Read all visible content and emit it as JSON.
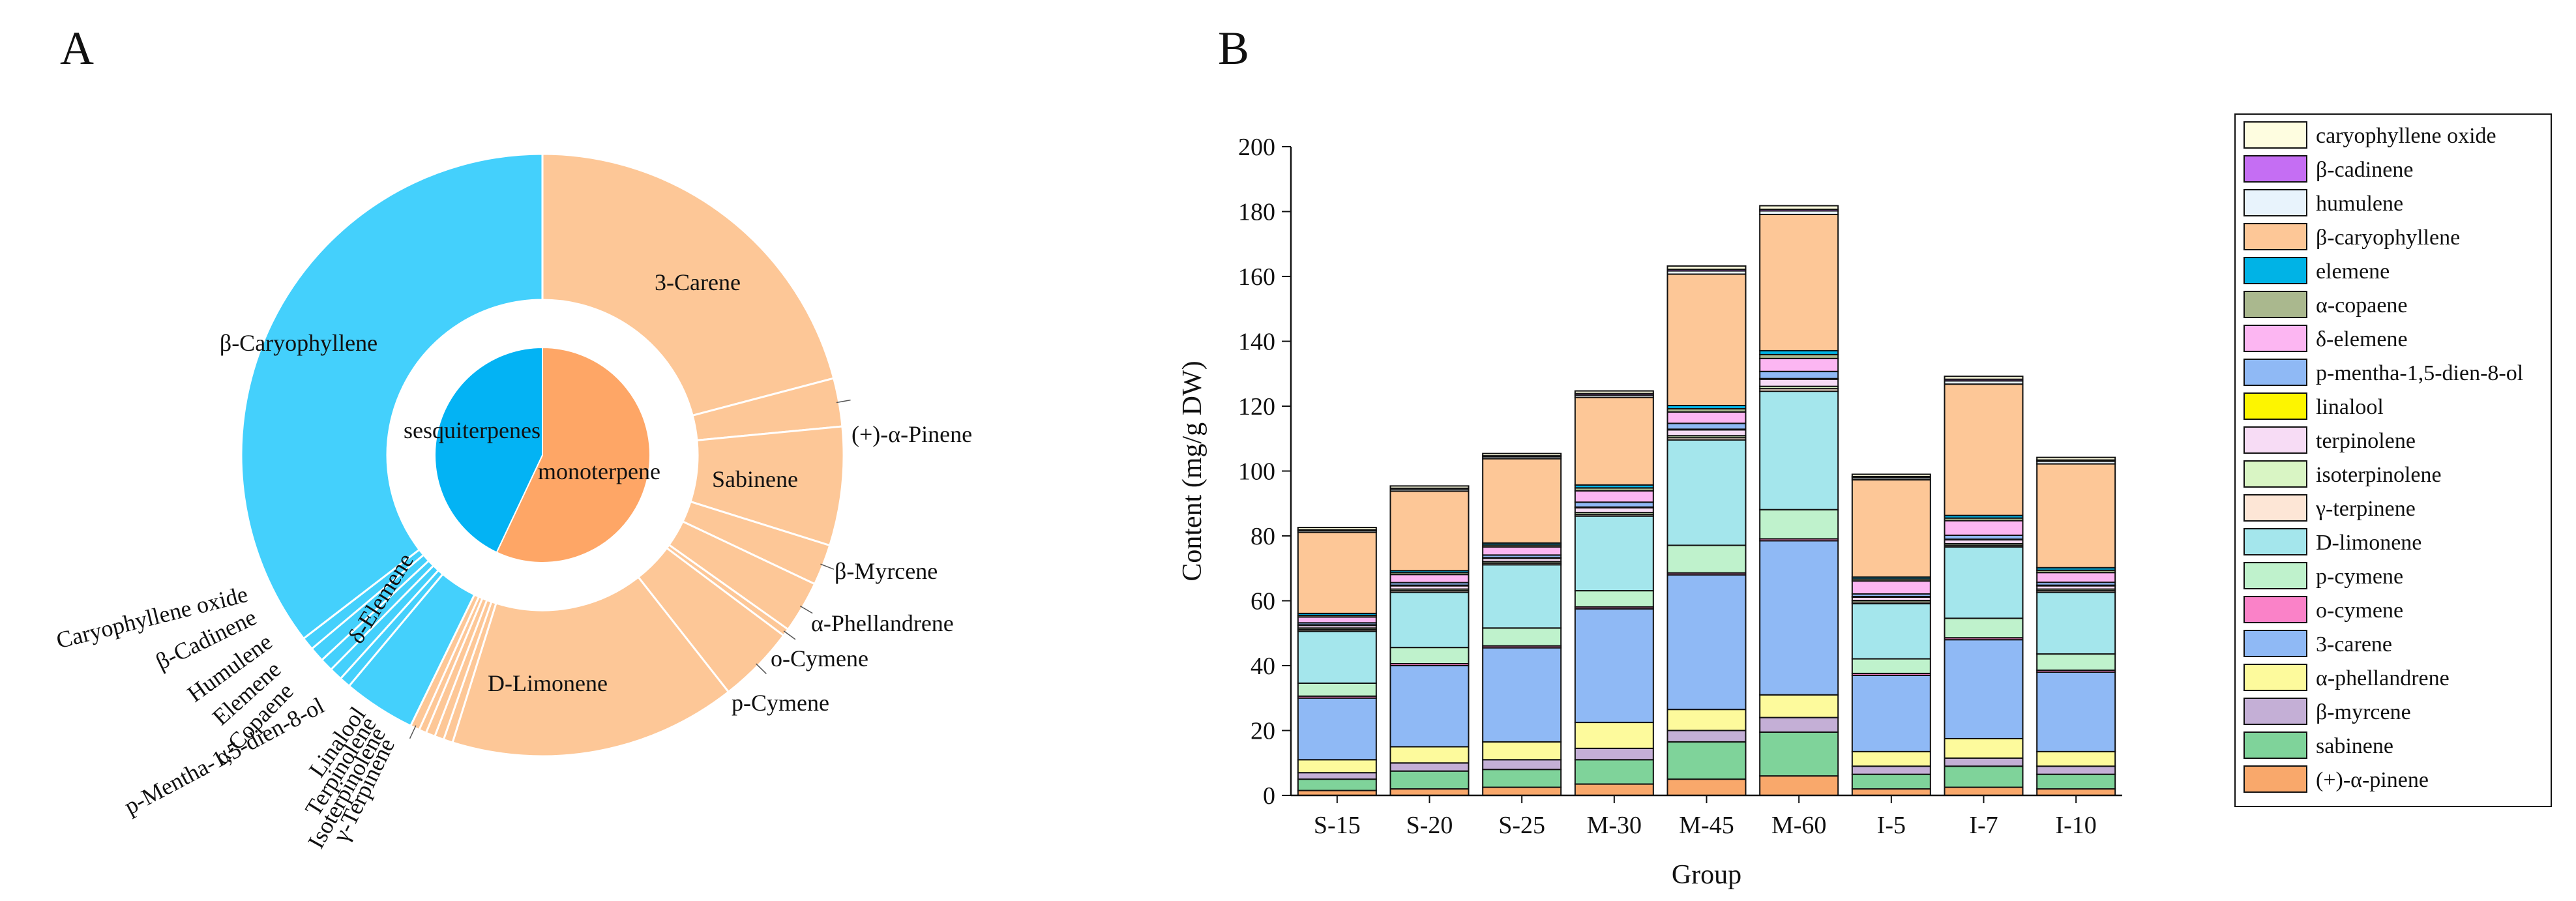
{
  "panels": {
    "a": "A",
    "b": "B"
  },
  "colors": {
    "mono_outer": "#fdc797",
    "mono_inner": "#fea666",
    "sesq_outer": "#44d0fc",
    "sesq_inner": "#03b3f4"
  },
  "chart_data": [
    {
      "type": "pie",
      "subtype": "sunburst",
      "inner": [
        {
          "name": "monoterpene",
          "value": 57.0
        },
        {
          "name": "sesquiterpenes",
          "value": 43.0
        }
      ],
      "outer": [
        {
          "name": "3-Carene",
          "value": 21.0,
          "group": "monoterpene"
        },
        {
          "name": "(+)-α-Pinene",
          "value": 2.6,
          "group": "monoterpene"
        },
        {
          "name": "Sabinene",
          "value": 6.4,
          "group": "monoterpene"
        },
        {
          "name": "β-Myrcene",
          "value": 2.2,
          "group": "monoterpene"
        },
        {
          "name": "α-Phellandrene",
          "value": 2.8,
          "group": "monoterpene"
        },
        {
          "name": "o-Cymene",
          "value": 0.4,
          "group": "monoterpene"
        },
        {
          "name": "p-Cymene",
          "value": 4.2,
          "group": "monoterpene"
        },
        {
          "name": "D-Limonene",
          "value": 15.5,
          "group": "monoterpene"
        },
        {
          "name": "γ-Terpinene",
          "value": 0.5,
          "group": "monoterpene"
        },
        {
          "name": "Isoterpinolene",
          "value": 0.5,
          "group": "monoterpene"
        },
        {
          "name": "Terpinolene",
          "value": 0.5,
          "group": "monoterpene"
        },
        {
          "name": "Linalool",
          "value": 0.4,
          "group": "monoterpene"
        },
        {
          "name": "p-Mentha-1,5-dien-8-ol",
          "value": 0.5,
          "group": "monoterpene"
        },
        {
          "name": "δ-Elemene",
          "value": 3.9,
          "group": "sesquiterpenes"
        },
        {
          "name": "α-Copaene",
          "value": 0.6,
          "group": "sesquiterpenes"
        },
        {
          "name": "Elemene",
          "value": 0.7,
          "group": "sesquiterpenes"
        },
        {
          "name": "Humulene",
          "value": 0.7,
          "group": "sesquiterpenes"
        },
        {
          "name": "β-Cadinene",
          "value": 0.8,
          "group": "sesquiterpenes"
        },
        {
          "name": "Caryophyllene oxide",
          "value": 0.7,
          "group": "sesquiterpenes"
        },
        {
          "name": "β-Caryophyllene",
          "value": 35.6,
          "group": "sesquiterpenes"
        }
      ]
    },
    {
      "type": "bar",
      "subtype": "stacked",
      "xlabel": "Group",
      "ylabel": "Content (mg/g DW)",
      "ylim": [
        0,
        200
      ],
      "yticks": [
        0,
        20,
        40,
        60,
        80,
        100,
        120,
        140,
        160,
        180,
        200
      ],
      "categories": [
        "S-15",
        "S-20",
        "S-25",
        "M-30",
        "M-45",
        "M-60",
        "I-5",
        "I-7",
        "I-10"
      ],
      "legend_position": "right",
      "series": [
        {
          "name": "(+)-α-pinene",
          "color": "#f9a86b",
          "values": [
            1.5,
            2.0,
            2.5,
            3.5,
            5.0,
            6.0,
            2.0,
            2.5,
            2.0
          ]
        },
        {
          "name": "sabinene",
          "color": "#7fd39a",
          "values": [
            3.5,
            5.5,
            5.5,
            7.5,
            11.5,
            13.5,
            4.5,
            6.5,
            4.5
          ]
        },
        {
          "name": "β-myrcene",
          "color": "#c4afd6",
          "values": [
            2.0,
            2.5,
            3.0,
            3.5,
            3.5,
            4.5,
            2.5,
            2.5,
            2.5
          ]
        },
        {
          "name": "α-phellandrene",
          "color": "#fdfa9c",
          "values": [
            4.0,
            5.0,
            5.5,
            8.0,
            6.5,
            7.0,
            4.5,
            6.0,
            4.5
          ]
        },
        {
          "name": "3-carene",
          "color": "#8fb9f5",
          "values": [
            19.0,
            25.0,
            29.0,
            35.0,
            41.5,
            47.5,
            23.5,
            30.5,
            24.5
          ]
        },
        {
          "name": "o-cymene",
          "color": "#fa82c8",
          "values": [
            0.6,
            0.6,
            0.6,
            0.6,
            0.6,
            0.6,
            0.6,
            0.6,
            0.6
          ]
        },
        {
          "name": "p-cymene",
          "color": "#bff2cc",
          "values": [
            4.0,
            5.0,
            5.5,
            5.0,
            8.5,
            9.0,
            4.5,
            6.0,
            5.0
          ]
        },
        {
          "name": "D-limonene",
          "color": "#a4e6ec",
          "values": [
            16.0,
            17.0,
            19.5,
            23.0,
            32.5,
            36.5,
            17.0,
            22.0,
            19.0
          ]
        },
        {
          "name": "γ-terpinene",
          "color": "#fde6d6",
          "values": [
            0.5,
            0.5,
            0.5,
            0.5,
            0.7,
            0.8,
            0.5,
            0.5,
            0.5
          ]
        },
        {
          "name": "isoterpinolene",
          "color": "#d9f5c4",
          "values": [
            0.5,
            0.5,
            0.5,
            0.6,
            0.6,
            0.7,
            0.5,
            0.5,
            0.5
          ]
        },
        {
          "name": "terpinolene",
          "color": "#f7dcf5",
          "values": [
            0.8,
            1.0,
            1.0,
            1.5,
            1.8,
            2.2,
            1.0,
            1.2,
            1.0
          ]
        },
        {
          "name": "linalool",
          "color": "#fdf500",
          "values": [
            0.2,
            0.2,
            0.2,
            0.2,
            0.2,
            0.2,
            0.2,
            0.2,
            0.2
          ]
        },
        {
          "name": "p-mentha-1,5-dien-8-ol",
          "color": "#8fb9f5",
          "values": [
            0.6,
            0.8,
            0.8,
            1.5,
            1.8,
            2.2,
            0.8,
            1.2,
            0.9
          ]
        },
        {
          "name": "δ-elemene",
          "color": "#fcb6f2",
          "values": [
            1.8,
            2.5,
            2.5,
            3.5,
            3.5,
            4.0,
            4.0,
            4.5,
            3.0
          ]
        },
        {
          "name": "α-copaene",
          "color": "#aab88e",
          "values": [
            0.5,
            0.6,
            0.6,
            0.9,
            1.0,
            1.2,
            0.6,
            0.8,
            0.7
          ]
        },
        {
          "name": "elemene",
          "color": "#00b3e6",
          "values": [
            0.6,
            0.6,
            0.6,
            0.9,
            1.0,
            1.2,
            0.6,
            0.8,
            0.8
          ]
        },
        {
          "name": "β-caryophyllene",
          "color": "#fdc797",
          "values": [
            25.0,
            24.5,
            26.0,
            27.0,
            40.5,
            42.0,
            30.0,
            40.5,
            32.0
          ]
        },
        {
          "name": "humulene",
          "color": "#e8f3fc",
          "values": [
            0.5,
            0.6,
            0.6,
            0.7,
            1.0,
            1.1,
            0.6,
            1.0,
            0.8
          ]
        },
        {
          "name": "β-cadinene",
          "color": "#c56ef3",
          "values": [
            0.3,
            0.3,
            0.3,
            0.5,
            0.5,
            0.5,
            0.4,
            0.5,
            0.4
          ]
        },
        {
          "name": "caryophyllene oxide",
          "color": "#fefde0",
          "values": [
            0.7,
            0.7,
            0.7,
            0.8,
            1.0,
            1.1,
            0.7,
            0.9,
            0.8
          ]
        }
      ]
    }
  ]
}
